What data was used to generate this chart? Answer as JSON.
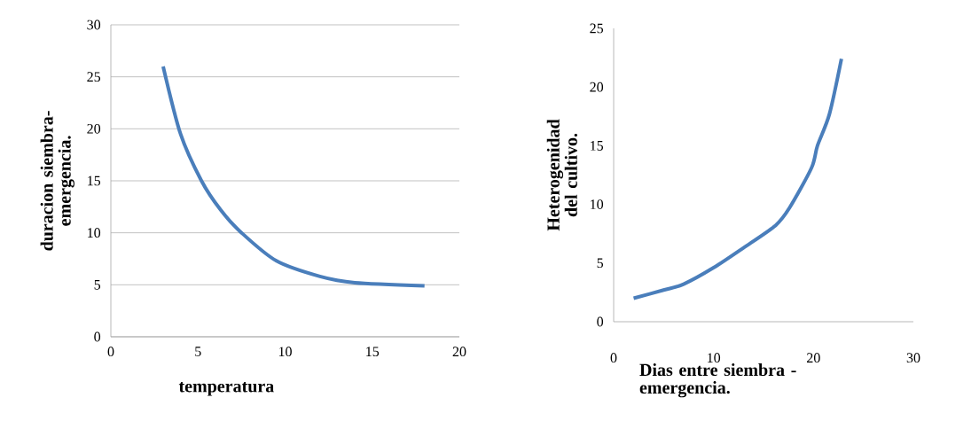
{
  "chart_data": [
    {
      "type": "line",
      "xlabel": "temperatura",
      "ylabel": "duracion siembra-emergencia.",
      "color": "#4a7ebb",
      "x": [
        3,
        4,
        5.2,
        6.3,
        7.5,
        9.5,
        12,
        14,
        18
      ],
      "values": [
        26,
        19.5,
        15,
        12.2,
        10,
        7.3,
        5.8,
        5.2,
        4.9
      ],
      "xlim": [
        0,
        20
      ],
      "ylim": [
        0,
        30
      ],
      "xticks": [
        0,
        5,
        10,
        15,
        20
      ],
      "yticks": [
        0,
        5,
        10,
        15,
        20,
        25,
        30
      ],
      "grid": "y"
    },
    {
      "type": "line",
      "xlabel": "Dias entre siembra - emergencia.",
      "ylabel": "Heterogenidad del cultivo.",
      "color": "#4a7ebb",
      "x": [
        2,
        5,
        7,
        10,
        13,
        16.2,
        17.6,
        19.8,
        20.4,
        21.6,
        22.8
      ],
      "values": [
        2,
        2.7,
        3.2,
        4.6,
        6.3,
        8.2,
        9.7,
        13.1,
        15,
        17.7,
        22.4
      ],
      "xlim": [
        0,
        30
      ],
      "ylim": [
        0,
        25
      ],
      "xticks": [
        0,
        10,
        20,
        30
      ],
      "yticks": [
        0,
        5,
        10,
        15,
        20,
        25
      ]
    }
  ]
}
